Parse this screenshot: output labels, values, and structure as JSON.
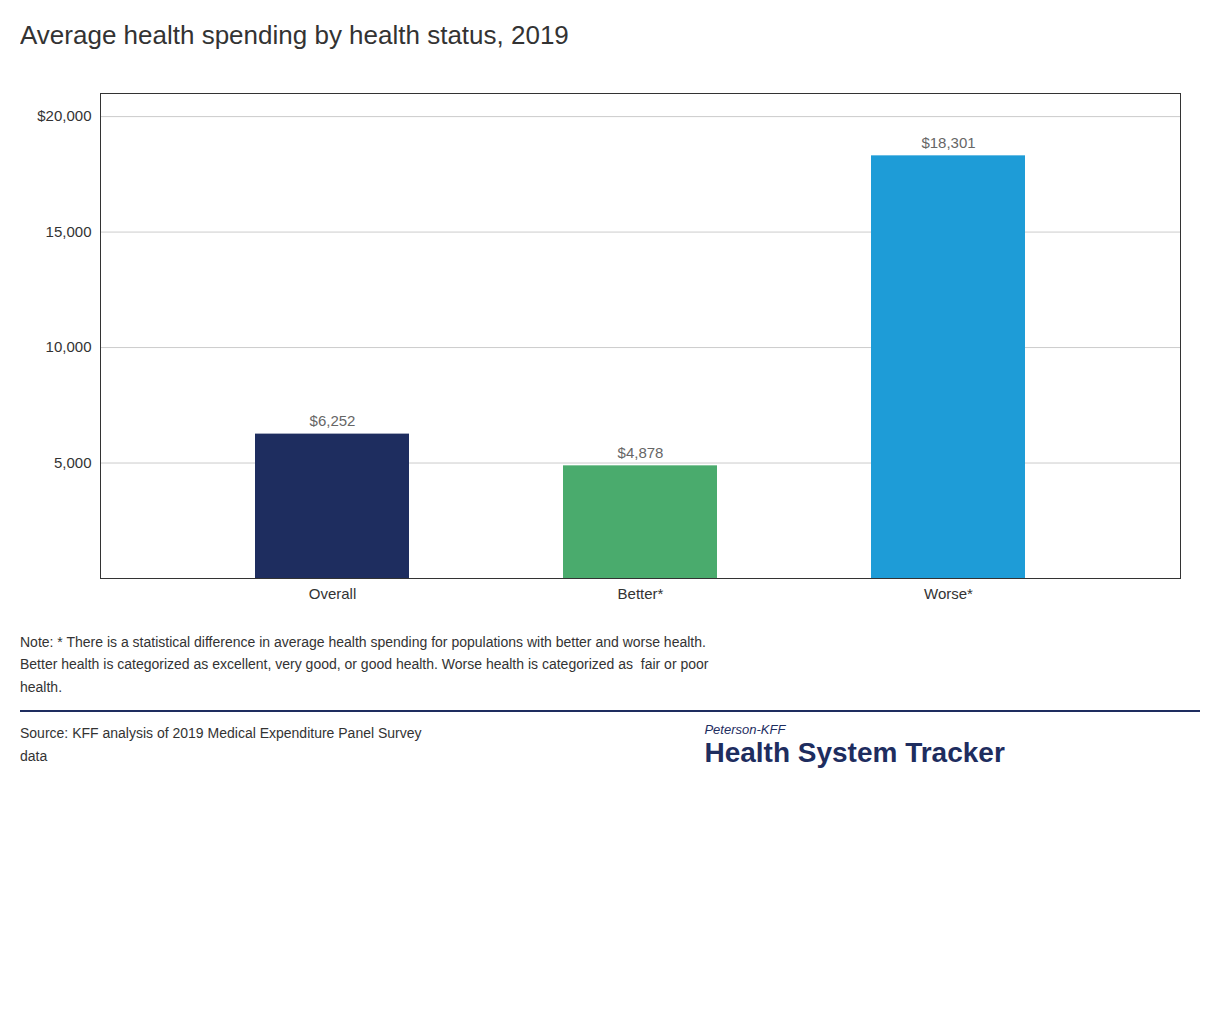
{
  "chart_data": {
    "type": "bar",
    "title": "Average health spending by health status, 2019",
    "categories": [
      "Overall",
      "Better*",
      "Worse*"
    ],
    "values": [
      6252,
      4878,
      18301
    ],
    "value_labels": [
      "$6,252",
      "$4,878",
      "$18,301"
    ],
    "colors": [
      "#1e2d5f",
      "#4aab6d",
      "#1e9cd7"
    ],
    "ylim": [
      0,
      21000
    ],
    "yticks": [
      {
        "value": 5000,
        "label": "5,000"
      },
      {
        "value": 10000,
        "label": "10,000"
      },
      {
        "value": 15000,
        "label": "15,000"
      },
      {
        "value": 20000,
        "label": "$20,000"
      }
    ],
    "grid": true,
    "data_labels": true,
    "note": "Note: * There is a statistical difference in average health spending for populations with better and worse health.\nBetter health is categorized as excellent, very good, or good health. Worse health is categorized as  fair or poor\nhealth.",
    "source": "Source: KFF analysis of 2019 Medical Expenditure Panel Survey\ndata",
    "brand": [
      "Peterson-KFF",
      "Health System Tracker"
    ]
  }
}
